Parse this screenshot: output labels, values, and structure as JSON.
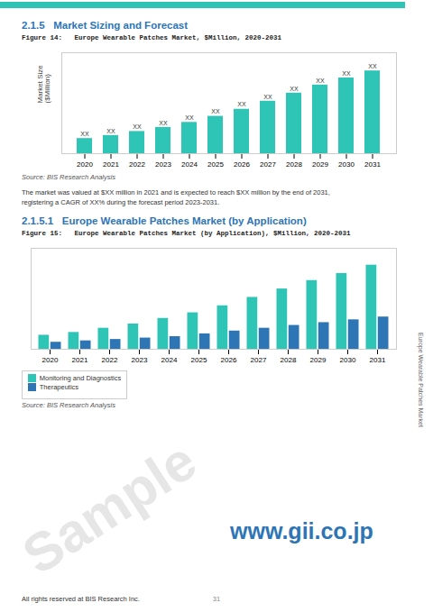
{
  "chart_data": [
    {
      "type": "bar",
      "title": "Figure 14:   Europe Wearable Patches Market, $Million, 2020-2031",
      "ylabel": "Market Size\n($Million)",
      "categories": [
        2020,
        2021,
        2022,
        2023,
        2024,
        2025,
        2026,
        2027,
        2028,
        2029,
        2030,
        2031
      ],
      "values": [
        1.5,
        1.8,
        2.2,
        2.6,
        3.1,
        3.7,
        4.4,
        5.2,
        6.0,
        6.8,
        7.5,
        8.2
      ],
      "value_labels": [
        "XX",
        "XX",
        "XX",
        "XX",
        "XX",
        "XX",
        "XX",
        "XX",
        "XX",
        "XX",
        "XX",
        "XX"
      ],
      "data_labels": true,
      "color": "#2ec4b6",
      "ylim": [
        0,
        10.004
      ],
      "yticks": [],
      "tick_labels": "x",
      "grid": false,
      "annotations": [
        "2.1.5   Market Sizing and Forecast",
        "Source: BIS Research Analysis",
        "The market was valued at $XX million in 2021 and is expected to reach $XX million by the end of 2031,",
        "registering a CAGR of XX% during the forecast period 2023-2031."
      ]
    },
    {
      "type": "bar",
      "title": "Figure 15:   Europe Wearable Patches Market (by Application), $Million, 2020-2031",
      "categories": [
        2020,
        2021,
        2022,
        2023,
        2024,
        2025,
        2026,
        2027,
        2028,
        2029,
        2030,
        2031
      ],
      "series": [
        {
          "name": "Monitoring and Diagnostics",
          "color": "#2ec4b6",
          "values": [
            1.0,
            1.2,
            1.5,
            1.8,
            2.2,
            2.6,
            3.1,
            3.7,
            4.3,
            4.9,
            5.4,
            6.0
          ]
        },
        {
          "name": "Therapeutics",
          "color": "#2e75b6",
          "values": [
            0.5,
            0.6,
            0.7,
            0.8,
            0.9,
            1.1,
            1.3,
            1.5,
            1.7,
            1.9,
            2.1,
            2.3
          ]
        }
      ],
      "ylim": [
        0,
        7.2
      ],
      "yticks": [],
      "tick_labels": "x",
      "grid": false,
      "legend": "bottom",
      "annotations": [
        "2.1.5.1   Europe Wearable Patches Market (by Application)",
        "Source: BIS Research Analysis",
        "Europe Wearable Patches Market",
        "www.gii.co.jp",
        "All rights reserved at BIS Research Inc.",
        "31",
        "Sample"
      ]
    }
  ]
}
